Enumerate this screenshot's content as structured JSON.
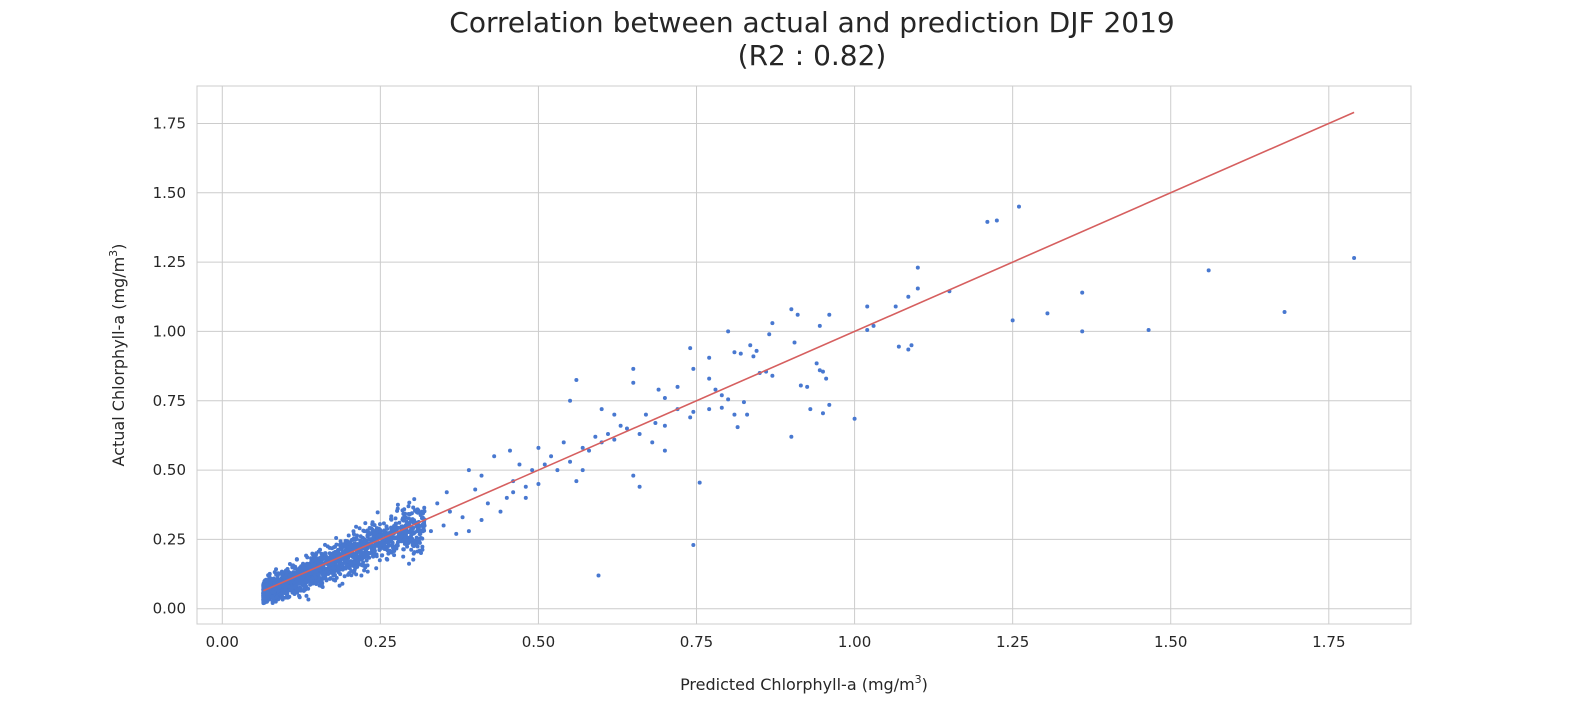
{
  "chart_data": {
    "type": "scatter",
    "title": "Correlation between actual and prediction DJF 2019",
    "subtitle": "(R2 : 0.82)",
    "xlabel": "Predicted Chlorphyll-a (mg/m",
    "xlabel_sup": "3",
    "xlabel_end": ")",
    "ylabel": "Actual Chlorphyll-a (mg/m",
    "ylabel_sup": "3",
    "ylabel_end": ")",
    "xlim": [
      -0.04,
      1.88
    ],
    "ylim": [
      -0.055,
      1.885
    ],
    "x_ticks": [
      0.0,
      0.25,
      0.5,
      0.75,
      1.0,
      1.25,
      1.5,
      1.75
    ],
    "x_tick_labels": [
      "0.00",
      "0.25",
      "0.50",
      "0.75",
      "1.00",
      "1.25",
      "1.50",
      "1.75"
    ],
    "y_ticks": [
      0.0,
      0.25,
      0.5,
      0.75,
      1.0,
      1.25,
      1.5,
      1.75
    ],
    "y_tick_labels": [
      "0.00",
      "0.25",
      "0.50",
      "0.75",
      "1.00",
      "1.25",
      "1.50",
      "1.75"
    ],
    "grid": true,
    "colors": {
      "points": "#4878d0",
      "fit_line": "#d65f5f"
    },
    "fit_line": {
      "x": [
        0.065,
        1.79
      ],
      "y": [
        0.065,
        1.79
      ]
    },
    "dense_cluster": {
      "x_range": [
        0.065,
        0.32
      ],
      "description_in_data": "dense band of points around y=x"
    },
    "series": [
      {
        "points": [
          [
            1.26,
            1.45
          ],
          [
            1.21,
            1.395
          ],
          [
            1.225,
            1.4
          ],
          [
            1.79,
            1.265
          ],
          [
            1.56,
            1.22
          ],
          [
            1.1,
            1.23
          ],
          [
            1.1,
            1.155
          ],
          [
            1.15,
            1.145
          ],
          [
            1.36,
            1.14
          ],
          [
            1.085,
            1.125
          ],
          [
            1.02,
            1.09
          ],
          [
            1.065,
            1.09
          ],
          [
            1.68,
            1.07
          ],
          [
            1.305,
            1.065
          ],
          [
            1.25,
            1.04
          ],
          [
            1.36,
            1.0
          ],
          [
            1.465,
            1.005
          ],
          [
            1.02,
            1.005
          ],
          [
            1.03,
            1.02
          ],
          [
            1.07,
            0.945
          ],
          [
            1.085,
            0.935
          ],
          [
            1.09,
            0.95
          ],
          [
            1.0,
            0.685
          ],
          [
            0.96,
            1.06
          ],
          [
            0.9,
            1.08
          ],
          [
            0.91,
            1.06
          ],
          [
            0.945,
            1.02
          ],
          [
            0.87,
            1.03
          ],
          [
            0.865,
            0.99
          ],
          [
            0.8,
            1.0
          ],
          [
            0.905,
            0.96
          ],
          [
            0.835,
            0.95
          ],
          [
            0.845,
            0.93
          ],
          [
            0.82,
            0.92
          ],
          [
            0.84,
            0.91
          ],
          [
            0.81,
            0.925
          ],
          [
            0.77,
            0.905
          ],
          [
            0.74,
            0.94
          ],
          [
            0.745,
            0.865
          ],
          [
            0.94,
            0.885
          ],
          [
            0.945,
            0.86
          ],
          [
            0.95,
            0.855
          ],
          [
            0.955,
            0.83
          ],
          [
            0.925,
            0.8
          ],
          [
            0.915,
            0.805
          ],
          [
            0.86,
            0.855
          ],
          [
            0.87,
            0.84
          ],
          [
            0.85,
            0.85
          ],
          [
            0.77,
            0.83
          ],
          [
            0.78,
            0.79
          ],
          [
            0.79,
            0.77
          ],
          [
            0.8,
            0.755
          ],
          [
            0.825,
            0.745
          ],
          [
            0.79,
            0.725
          ],
          [
            0.77,
            0.72
          ],
          [
            0.745,
            0.71
          ],
          [
            0.81,
            0.7
          ],
          [
            0.83,
            0.7
          ],
          [
            0.815,
            0.655
          ],
          [
            0.96,
            0.735
          ],
          [
            0.95,
            0.705
          ],
          [
            0.93,
            0.72
          ],
          [
            0.9,
            0.62
          ],
          [
            0.745,
            0.23
          ],
          [
            0.755,
            0.455
          ],
          [
            0.595,
            0.12
          ],
          [
            0.56,
            0.825
          ],
          [
            0.65,
            0.865
          ],
          [
            0.65,
            0.815
          ],
          [
            0.69,
            0.79
          ],
          [
            0.72,
            0.8
          ],
          [
            0.7,
            0.76
          ],
          [
            0.72,
            0.72
          ],
          [
            0.74,
            0.69
          ],
          [
            0.685,
            0.67
          ],
          [
            0.66,
            0.63
          ],
          [
            0.68,
            0.6
          ],
          [
            0.7,
            0.57
          ],
          [
            0.65,
            0.48
          ],
          [
            0.66,
            0.44
          ],
          [
            0.6,
            0.72
          ],
          [
            0.62,
            0.7
          ],
          [
            0.63,
            0.66
          ],
          [
            0.61,
            0.63
          ],
          [
            0.6,
            0.6
          ],
          [
            0.58,
            0.57
          ],
          [
            0.57,
            0.5
          ],
          [
            0.56,
            0.46
          ],
          [
            0.55,
            0.75
          ],
          [
            0.54,
            0.6
          ],
          [
            0.52,
            0.55
          ],
          [
            0.51,
            0.52
          ],
          [
            0.5,
            0.58
          ],
          [
            0.49,
            0.5
          ],
          [
            0.48,
            0.44
          ],
          [
            0.46,
            0.46
          ],
          [
            0.45,
            0.4
          ],
          [
            0.42,
            0.38
          ],
          [
            0.4,
            0.43
          ],
          [
            0.38,
            0.33
          ],
          [
            0.36,
            0.35
          ],
          [
            0.35,
            0.3
          ],
          [
            0.33,
            0.28
          ],
          [
            0.31,
            0.3
          ],
          [
            0.3,
            0.25
          ],
          [
            0.43,
            0.55
          ],
          [
            0.455,
            0.57
          ],
          [
            0.47,
            0.52
          ],
          [
            0.41,
            0.48
          ],
          [
            0.39,
            0.5
          ],
          [
            0.355,
            0.42
          ],
          [
            0.34,
            0.38
          ],
          [
            0.29,
            0.33
          ],
          [
            0.28,
            0.31
          ],
          [
            0.27,
            0.22
          ],
          [
            0.26,
            0.18
          ],
          [
            0.24,
            0.21
          ],
          [
            0.22,
            0.12
          ],
          [
            0.2,
            0.15
          ],
          [
            0.19,
            0.09
          ],
          [
            0.25,
            0.28
          ],
          [
            0.23,
            0.26
          ],
          [
            0.21,
            0.25
          ],
          [
            0.17,
            0.2
          ],
          [
            0.16,
            0.13
          ],
          [
            0.14,
            0.1
          ],
          [
            0.12,
            0.07
          ],
          [
            0.1,
            0.04
          ],
          [
            0.09,
            0.08
          ],
          [
            0.08,
            0.06
          ],
          [
            0.37,
            0.27
          ],
          [
            0.39,
            0.28
          ],
          [
            0.41,
            0.32
          ],
          [
            0.44,
            0.35
          ],
          [
            0.46,
            0.42
          ],
          [
            0.48,
            0.4
          ],
          [
            0.5,
            0.45
          ],
          [
            0.53,
            0.5
          ],
          [
            0.55,
            0.53
          ],
          [
            0.57,
            0.58
          ],
          [
            0.59,
            0.62
          ],
          [
            0.62,
            0.61
          ],
          [
            0.64,
            0.65
          ],
          [
            0.67,
            0.7
          ],
          [
            0.7,
            0.66
          ]
        ]
      }
    ]
  }
}
